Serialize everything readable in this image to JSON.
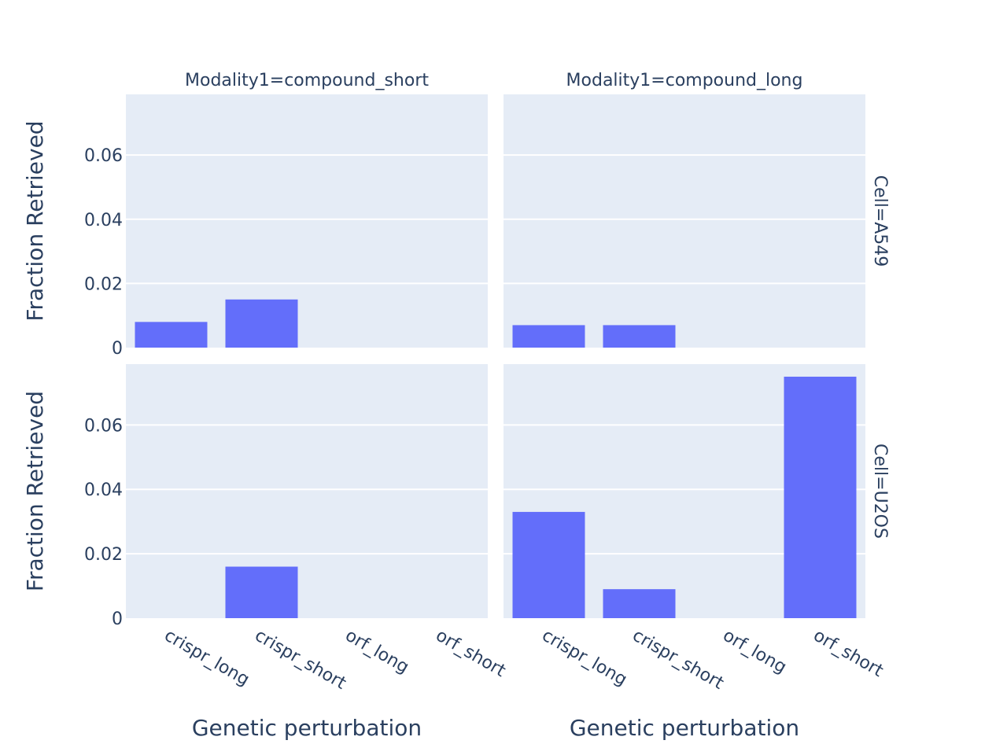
{
  "chart_data": {
    "type": "bar",
    "facet_col_labels": [
      "Modality1=compound_short",
      "Modality1=compound_long"
    ],
    "facet_row_labels": [
      "Cell=A549",
      "Cell=U2OS"
    ],
    "categories": [
      "crispr_long",
      "crispr_short",
      "orf_long",
      "orf_short"
    ],
    "xlabel": "Genetic perturbation",
    "ylabel": "Fraction Retrieved",
    "ylim": [
      0,
      0.0789
    ],
    "yticks": [
      0,
      0.02,
      0.04,
      0.06
    ],
    "ytick_labels": [
      "0",
      "0.02",
      "0.04",
      "0.06"
    ],
    "grid": true,
    "colors": {
      "bar": "#636efa",
      "plot_bg": "#e5ecf6",
      "grid": "#ffffff",
      "text": "#2a3f5f"
    },
    "panels": [
      {
        "row": 0,
        "col": 0,
        "values": [
          0.008,
          0.015,
          0,
          0
        ]
      },
      {
        "row": 0,
        "col": 1,
        "values": [
          0.007,
          0.007,
          0,
          0
        ]
      },
      {
        "row": 1,
        "col": 0,
        "values": [
          0,
          0.016,
          0,
          0
        ]
      },
      {
        "row": 1,
        "col": 1,
        "values": [
          0.033,
          0.009,
          0,
          0.075
        ]
      }
    ]
  }
}
